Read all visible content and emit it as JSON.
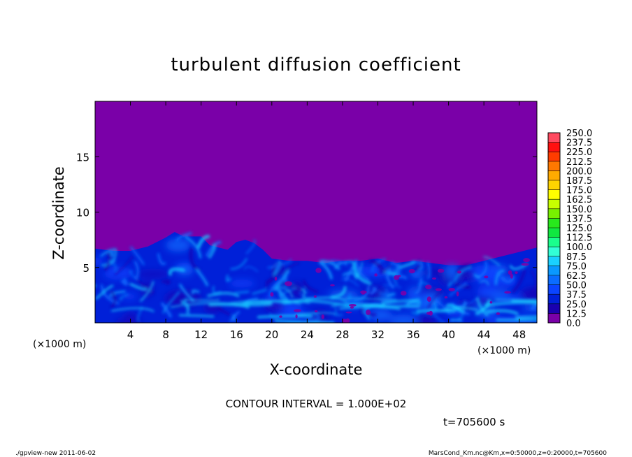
{
  "chart_data": {
    "type": "heatmap",
    "title": "turbulent diffusion coefficient",
    "xlabel": "X-coordinate",
    "ylabel": "Z-coordinate",
    "x_unit_left": "(×1000 m)",
    "x_unit_right": "(×1000 m)",
    "xlim": [
      0,
      50
    ],
    "ylim": [
      0,
      20
    ],
    "x_ticks": [
      4,
      8,
      12,
      16,
      20,
      24,
      28,
      32,
      36,
      40,
      44,
      48
    ],
    "y_ticks": [
      5,
      10,
      15
    ],
    "colorbar": {
      "levels": [
        "0.0",
        "12.5",
        "25.0",
        "37.5",
        "50.0",
        "62.5",
        "75.0",
        "87.5",
        "100.0",
        "112.5",
        "125.0",
        "137.5",
        "150.0",
        "162.5",
        "175.0",
        "187.5",
        "200.0",
        "212.5",
        "225.0",
        "237.5",
        "250.0"
      ],
      "colors": [
        "#7a00a8",
        "#1a00b0",
        "#0020d8",
        "#0a44ff",
        "#0a6cff",
        "#0a98ff",
        "#1ad0ff",
        "#32ffd6",
        "#1aff8c",
        "#10e840",
        "#28e81c",
        "#78f000",
        "#c8ff00",
        "#ffff00",
        "#ffd400",
        "#ffaa00",
        "#ff7800",
        "#ff3c00",
        "#ff1010",
        "#ff4a60",
        "#ff7aa0"
      ]
    },
    "background_color": "#7a00a8",
    "turbulent_layer_top_profile": {
      "x": [
        0,
        2,
        4,
        6,
        8,
        9,
        10,
        12,
        13,
        15,
        16,
        17,
        18,
        19,
        20,
        22,
        24,
        26,
        28,
        30,
        32,
        34,
        36,
        38,
        40,
        42,
        44,
        46,
        48,
        50
      ],
      "z": [
        6.7,
        6.5,
        6.5,
        6.9,
        7.7,
        8.2,
        7.8,
        7.8,
        7.0,
        6.6,
        7.3,
        7.5,
        7.2,
        6.6,
        5.8,
        5.6,
        5.6,
        5.4,
        5.6,
        5.6,
        5.8,
        5.4,
        5.6,
        5.4,
        5.2,
        5.2,
        5.6,
        6.0,
        6.4,
        6.8
      ]
    }
  },
  "contour_interval": "CONTOUR INTERVAL = 1.000E+02",
  "time_label": "t=705600 s",
  "footer_left": "./gpview-new 2011-06-02",
  "footer_right": "MarsCond_Km.nc@Km,x=0:50000,z=0:20000,t=705600"
}
